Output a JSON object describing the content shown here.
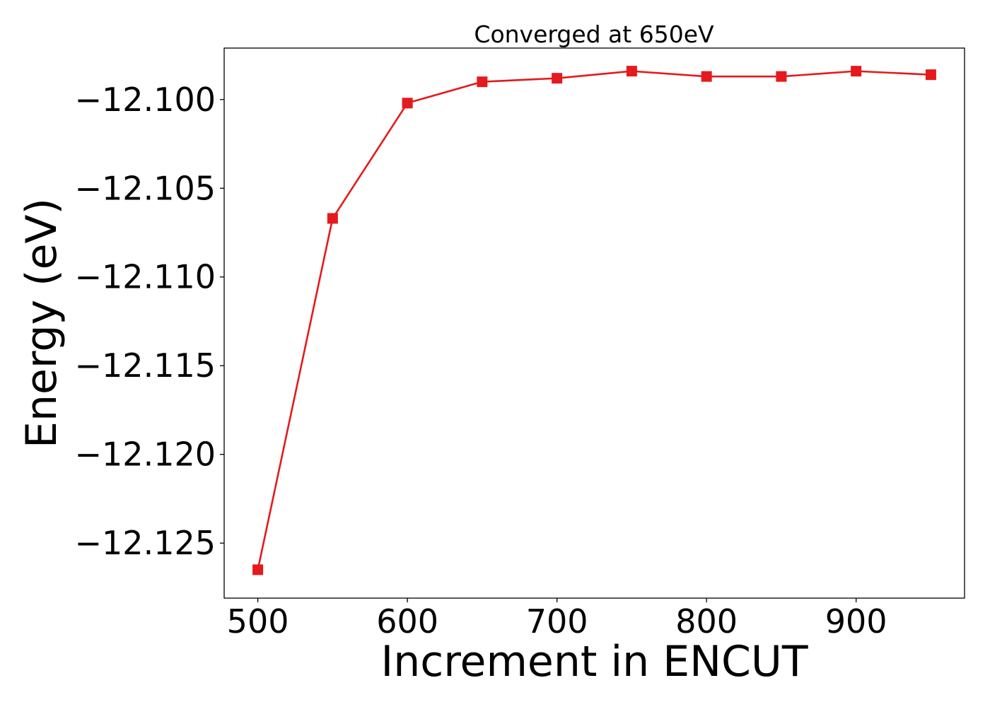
{
  "chart_data": {
    "type": "line",
    "title": "Converged at 650eV",
    "xlabel": "Increment in ENCUT",
    "ylabel": "Energy (eV)",
    "xlim": [
      477.5,
      972.5
    ],
    "ylim": [
      -12.1281,
      -12.0971
    ],
    "x_ticks": [
      500,
      600,
      700,
      800,
      900
    ],
    "x_tick_labels": [
      "500",
      "600",
      "700",
      "800",
      "900"
    ],
    "y_ticks": [
      -12.1,
      -12.105,
      -12.11,
      -12.115,
      -12.12,
      -12.125
    ],
    "y_tick_labels": [
      "−12.100",
      "−12.105",
      "−12.110",
      "−12.115",
      "−12.120",
      "−12.125"
    ],
    "grid": false,
    "series": [
      {
        "color": "#e41a1c",
        "marker": "square",
        "x": [
          500,
          550,
          600,
          650,
          700,
          750,
          800,
          850,
          900,
          950
        ],
        "y": [
          -12.1265,
          -12.1067,
          -12.1002,
          -12.099,
          -12.0988,
          -12.0984,
          -12.0987,
          -12.0987,
          -12.0984,
          -12.0986
        ]
      }
    ]
  }
}
